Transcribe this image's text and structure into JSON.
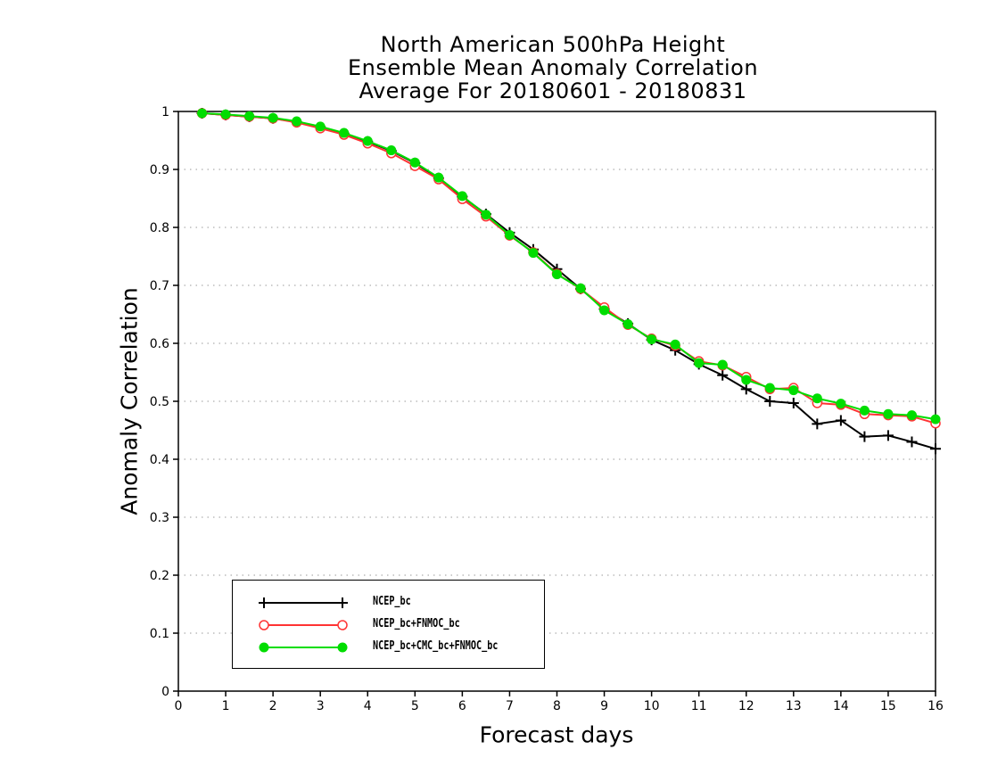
{
  "chart_data": {
    "type": "line",
    "title_lines": [
      "North American 500hPa Height",
      "Ensemble Mean Anomaly Correlation",
      "Average For 20180601 - 20180831"
    ],
    "xlabel": "Forecast days",
    "ylabel": "Anomaly Correlation",
    "xlim": [
      0,
      16
    ],
    "ylim": [
      0,
      1
    ],
    "x_ticks": [
      "0",
      "1",
      "2",
      "3",
      "4",
      "5",
      "6",
      "7",
      "8",
      "9",
      "10",
      "11",
      "12",
      "13",
      "14",
      "15",
      "16"
    ],
    "y_ticks": [
      "0",
      "0.1",
      "0.2",
      "0.3",
      "0.4",
      "0.5",
      "0.6",
      "0.7",
      "0.8",
      "0.9",
      "1"
    ],
    "grid": "horizontal dotted",
    "legend_placement": "bottom-left",
    "x": [
      0.5,
      1,
      1.5,
      2,
      2.5,
      3,
      3.5,
      4,
      4.5,
      5,
      5.5,
      6,
      6.5,
      7,
      7.5,
      8,
      8.5,
      9,
      9.5,
      10,
      10.5,
      11,
      11.5,
      12,
      12.5,
      13,
      13.5,
      14,
      14.5,
      15,
      15.5,
      16
    ],
    "series": [
      {
        "name": "NCEP_bc",
        "color": "#000000",
        "marker": "plus",
        "values": [
          0.997,
          0.994,
          0.991,
          0.988,
          0.982,
          0.973,
          0.962,
          0.948,
          0.932,
          0.911,
          0.885,
          0.853,
          0.823,
          0.791,
          0.762,
          0.728,
          0.694,
          0.659,
          0.634,
          0.606,
          0.588,
          0.564,
          0.545,
          0.521,
          0.5,
          0.497,
          0.461,
          0.467,
          0.439,
          0.441,
          0.43,
          0.418
        ]
      },
      {
        "name": "NCEP_bc+FNMOC_bc",
        "color": "#ff3333",
        "marker": "open-circle",
        "values": [
          0.997,
          0.994,
          0.991,
          0.988,
          0.981,
          0.971,
          0.96,
          0.945,
          0.928,
          0.906,
          0.883,
          0.849,
          0.819,
          0.786,
          0.757,
          0.72,
          0.694,
          0.662,
          0.632,
          0.608,
          0.596,
          0.569,
          0.562,
          0.542,
          0.521,
          0.523,
          0.497,
          0.494,
          0.478,
          0.476,
          0.474,
          0.462
        ]
      },
      {
        "name": "NCEP_bc+CMC_bc+FNMOC_bc",
        "color": "#00dd00",
        "marker": "filled-circle",
        "values": [
          0.997,
          0.995,
          0.992,
          0.989,
          0.983,
          0.974,
          0.963,
          0.949,
          0.933,
          0.912,
          0.886,
          0.854,
          0.822,
          0.787,
          0.756,
          0.719,
          0.695,
          0.657,
          0.633,
          0.607,
          0.598,
          0.566,
          0.563,
          0.537,
          0.523,
          0.519,
          0.505,
          0.496,
          0.484,
          0.478,
          0.476,
          0.469
        ]
      }
    ]
  }
}
